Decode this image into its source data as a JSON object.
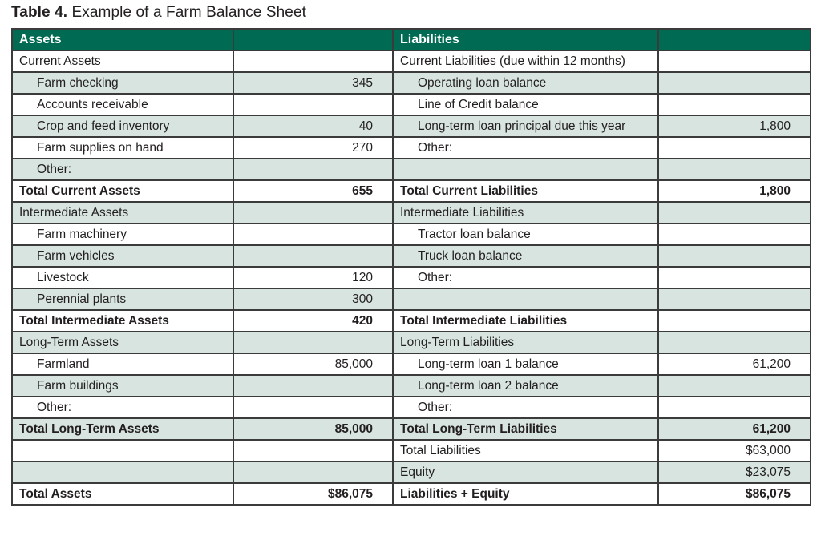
{
  "caption": {
    "prefix": "Table 4.",
    "text": " Example of a Farm Balance Sheet"
  },
  "colors": {
    "header_bg": "#006b52",
    "header_text": "#ffffff",
    "row_tint": "#d7e4e0",
    "grid_border": "#3b3b3b",
    "body_text": "#231f20"
  },
  "table": {
    "headers": {
      "assets": "Assets",
      "liabilities": "Liabilities"
    },
    "rows": [
      {
        "a": "Current Assets",
        "av": "",
        "l": "Current Liabilities (due within 12 months)",
        "lv": ""
      },
      {
        "a": "Farm checking",
        "av": "345",
        "l": "Operating loan balance",
        "lv": ""
      },
      {
        "a": "Accounts receivable",
        "av": "",
        "l": "Line of Credit balance",
        "lv": ""
      },
      {
        "a": "Crop and feed inventory",
        "av": "40",
        "l": "Long-term loan principal due this year",
        "lv": "1,800"
      },
      {
        "a": "Farm supplies on hand",
        "av": "270",
        "l": "Other:",
        "lv": ""
      },
      {
        "a": "Other:",
        "av": "",
        "l": "",
        "lv": ""
      },
      {
        "a": "Total Current Assets",
        "av": "655",
        "l": "Total Current Liabilities",
        "lv": "1,800"
      },
      {
        "a": "Intermediate Assets",
        "av": "",
        "l": "Intermediate Liabilities",
        "lv": ""
      },
      {
        "a": "Farm machinery",
        "av": "",
        "l": "Tractor loan balance",
        "lv": ""
      },
      {
        "a": "Farm vehicles",
        "av": "",
        "l": "Truck loan balance",
        "lv": ""
      },
      {
        "a": "Livestock",
        "av": "120",
        "l": "Other:",
        "lv": ""
      },
      {
        "a": "Perennial plants",
        "av": "300",
        "l": "",
        "lv": ""
      },
      {
        "a": "Total Intermediate Assets",
        "av": "420",
        "l": "Total Intermediate Liabilities",
        "lv": ""
      },
      {
        "a": "Long-Term Assets",
        "av": "",
        "l": "Long-Term Liabilities",
        "lv": ""
      },
      {
        "a": "Farmland",
        "av": "85,000",
        "l": "Long-term loan 1 balance",
        "lv": "61,200"
      },
      {
        "a": "Farm buildings",
        "av": "",
        "l": "Long-term loan 2 balance",
        "lv": ""
      },
      {
        "a": "Other:",
        "av": "",
        "l": "Other:",
        "lv": ""
      },
      {
        "a": "Total Long-Term Assets",
        "av": "85,000",
        "l": "Total Long-Term Liabilities",
        "lv": "61,200"
      },
      {
        "a": "",
        "av": "",
        "l": "Total Liabilities",
        "lv": "$63,000"
      },
      {
        "a": "",
        "av": "",
        "l": "Equity",
        "lv": "$23,075"
      },
      {
        "a": "Total Assets",
        "av": "$86,075",
        "l": "Liabilities + Equity",
        "lv": "$86,075"
      }
    ]
  }
}
